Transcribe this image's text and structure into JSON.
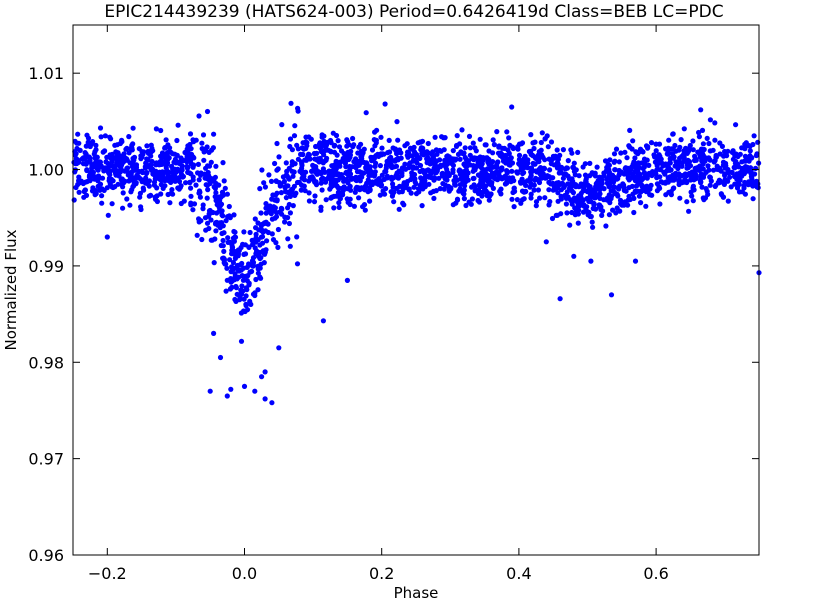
{
  "chart_data": {
    "type": "scatter",
    "title": "EPIC214439239 (HATS624-003)  Period=0.6426419d  Class=BEB  LC=PDC",
    "xlabel": "Phase",
    "ylabel": "Normalized Flux",
    "xlim": [
      -0.25,
      0.75
    ],
    "ylim": [
      0.96,
      1.015
    ],
    "x_ticks": [
      -0.2,
      0.0,
      0.2,
      0.4,
      0.6
    ],
    "x_tick_labels": [
      "−0.2",
      "0.0",
      "0.2",
      "0.4",
      "0.6"
    ],
    "y_ticks": [
      0.96,
      0.97,
      0.98,
      0.99,
      1.0,
      1.01
    ],
    "y_tick_labels": [
      "0.96",
      "0.97",
      "0.98",
      "0.99",
      "1.00",
      "1.01"
    ],
    "grid": false,
    "marker_color": "#0000ff",
    "model": {
      "baseline": 1.0,
      "primary_eclipse": {
        "center": 0.0,
        "depth": 0.0125,
        "width": 0.035
      },
      "secondary_eclipse": {
        "center": 0.5,
        "depth": 0.0025,
        "width": 0.05
      },
      "n_points": 2600,
      "scatter": 0.0017
    },
    "points": [
      [
        -0.05,
        0.977
      ],
      [
        -0.025,
        0.9765
      ],
      [
        -0.02,
        0.9772
      ],
      [
        0.0,
        0.9775
      ],
      [
        0.03,
        0.9762
      ],
      [
        0.04,
        0.9758
      ],
      [
        0.05,
        0.9815
      ],
      [
        0.03,
        0.979
      ],
      [
        -0.035,
        0.9805
      ],
      [
        -0.045,
        0.983
      ],
      [
        0.115,
        0.9843
      ],
      [
        0.15,
        0.9885
      ],
      [
        0.46,
        0.9866
      ],
      [
        0.535,
        0.987
      ],
      [
        0.57,
        0.9905
      ],
      [
        0.75,
        0.9893
      ],
      [
        -0.2,
        0.993
      ],
      [
        0.44,
        0.9925
      ],
      [
        0.48,
        0.991
      ],
      [
        0.505,
        0.9905
      ],
      [
        0.205,
        1.0068
      ],
      [
        0.665,
        1.0062
      ],
      [
        0.015,
        0.977
      ],
      [
        0.025,
        0.9785
      ]
    ]
  }
}
